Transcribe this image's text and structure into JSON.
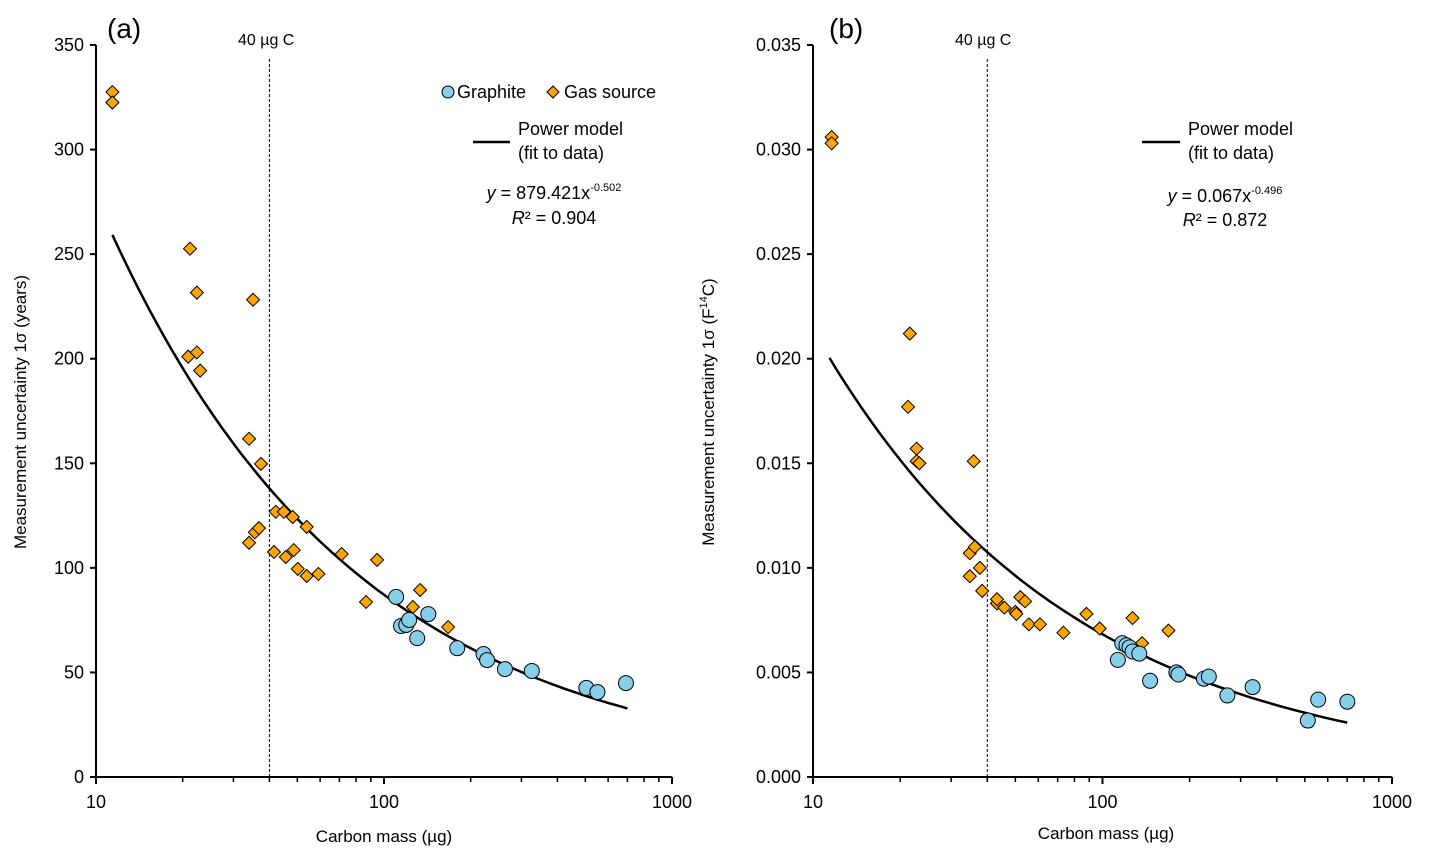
{
  "colors": {
    "graphite": "#87CEEB",
    "gas_source": "#FFA500",
    "marker_edge": "#000000",
    "fit_line": "#000000",
    "axis": "#000000"
  },
  "chart_data": [
    {
      "type": "scatter",
      "panel_label": "(a)",
      "xlabel": "Carbon mass (µg)",
      "ylabel": "Measurement uncertainty 1σ (years)",
      "xscale": "log",
      "xlim": [
        10,
        1000
      ],
      "ylim": [
        0,
        350
      ],
      "xticks": [
        10,
        100,
        1000
      ],
      "xtick_labels": [
        "10",
        "100",
        "1000"
      ],
      "yticks": [
        0,
        50,
        100,
        150,
        200,
        250,
        300,
        350
      ],
      "ytick_labels": [
        "0",
        "50",
        "100",
        "150",
        "200",
        "250",
        "300",
        "350"
      ],
      "grid": false,
      "vline": {
        "x": 40,
        "label": "40 µg C",
        "style": "dashed"
      },
      "legend": {
        "placement": "top-right",
        "entries": [
          "Graphite",
          "Gas source"
        ]
      },
      "fit": {
        "label_line1": "Power model",
        "label_line2": "(fit to data)",
        "equation_prefix": "y",
        "equation_body": " = 879.421x",
        "equation_exponent": "-0.502",
        "r2_prefix": "R",
        "r2_body": "² = 0.904",
        "a": 879.421,
        "b": -0.502,
        "r2": 0.904,
        "x_range": [
          11.4,
          700
        ]
      },
      "series": [
        {
          "name": "Gas source",
          "marker": "diamond",
          "x": [
            11.4,
            11.4,
            21.2,
            22.4,
            20.9,
            22.4,
            23.0,
            35.1,
            34.0,
            37.4,
            34.0,
            35.6,
            36.8,
            41.5,
            42.1,
            44.9,
            48.2,
            45.6,
            48.6,
            50.2,
            53.9,
            53.9,
            59.2,
            71.3,
            94.6,
            86.6,
            126,
            133.5,
            167
          ],
          "y": [
            327.5,
            322.5,
            252.6,
            231.6,
            201,
            203,
            194.3,
            228.2,
            161.7,
            149.7,
            112,
            117,
            119,
            107.6,
            126.8,
            126.8,
            124.3,
            105.2,
            108.5,
            99.5,
            96.1,
            119.6,
            97.1,
            106.6,
            103.8,
            83.7,
            81.3,
            89.4,
            71.7
          ]
        },
        {
          "name": "Graphite",
          "marker": "circle",
          "x": [
            110.2,
            114.6,
            119.5,
            122.3,
            130.4,
            142.5,
            179.6,
            221.6,
            228,
            263,
            326,
            504,
            551,
            692
          ],
          "y": [
            86.1,
            72.2,
            72.7,
            75.1,
            66.4,
            77.9,
            61.6,
            58.8,
            55.9,
            51.6,
            50.7,
            42.6,
            40.6,
            44.9
          ]
        }
      ]
    },
    {
      "type": "scatter",
      "panel_label": "(b)",
      "xlabel": "Carbon mass (µg)",
      "ylabel_prefix": "Measurement uncertainty 1σ (F",
      "ylabel_sup": "14",
      "ylabel_suffix": "C)",
      "xscale": "log",
      "xlim": [
        10,
        1000
      ],
      "ylim": [
        0,
        0.035
      ],
      "xticks": [
        10,
        100,
        1000
      ],
      "xtick_labels": [
        "10",
        "100",
        "1000"
      ],
      "yticks": [
        0,
        0.005,
        0.01,
        0.015,
        0.02,
        0.025,
        0.03,
        0.035
      ],
      "ytick_labels": [
        "0.000",
        "0.005",
        "0.010",
        "0.015",
        "0.020",
        "0.025",
        "0.030",
        "0.035"
      ],
      "grid": false,
      "vline": {
        "x": 40,
        "label": "40 µg C",
        "style": "dashed"
      },
      "fit": {
        "label_line1": "Power model",
        "label_line2": "(fit to data)",
        "equation_prefix": "y",
        "equation_body": " = 0.067x",
        "equation_exponent": "-0.496",
        "r2_prefix": "R",
        "r2_body": "² = 0.872",
        "a": 0.067,
        "b": -0.496,
        "r2": 0.872,
        "x_range": [
          11.4,
          700
        ]
      },
      "series": [
        {
          "name": "Gas source",
          "marker": "diamond",
          "x": [
            11.6,
            11.6,
            21.3,
            21.6,
            22.8,
            22.8,
            23.3,
            35.9,
            34.8,
            36.2,
            34.8,
            37.7,
            38.4,
            43.2,
            43.2,
            45.8,
            50.0,
            50.4,
            52.0,
            54.0,
            55.7,
            60.8,
            73.3,
            88.0,
            97.8,
            127,
            137,
            169
          ],
          "y": [
            0.0306,
            0.0303,
            0.0177,
            0.0212,
            0.0157,
            0.0151,
            0.015,
            0.0151,
            0.0107,
            0.011,
            0.0096,
            0.01,
            0.0089,
            0.0083,
            0.0085,
            0.0081,
            0.0079,
            0.0078,
            0.0086,
            0.0084,
            0.0073,
            0.0073,
            0.0069,
            0.0078,
            0.0071,
            0.0076,
            0.0064,
            0.007
          ]
        },
        {
          "name": "Graphite",
          "marker": "circle",
          "x": [
            113,
            117,
            121,
            124,
            127,
            134,
            146,
            180,
            183,
            224,
            233,
            270,
            330,
            512,
            556,
            701
          ],
          "y": [
            0.0056,
            0.0064,
            0.0063,
            0.0062,
            0.006,
            0.0059,
            0.0046,
            0.005,
            0.0049,
            0.0047,
            0.0048,
            0.0039,
            0.0043,
            0.0027,
            0.0037,
            0.0036
          ]
        }
      ]
    }
  ]
}
